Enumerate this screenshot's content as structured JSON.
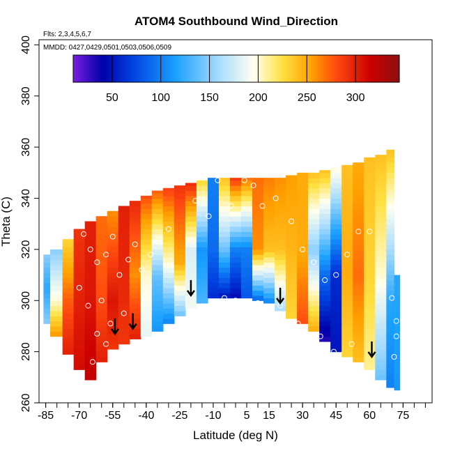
{
  "chart_data": {
    "type": "heatmap",
    "title": "ATOM4 Southbound Wind_Direction",
    "flights_note": "Flts: 2,3,4,5,6,7",
    "dates_note": "MMDD: 0427,0429,0501,0503,0506,0509",
    "xlabel": "Latitude (deg N)",
    "ylabel": "Theta (C)",
    "xlim": [
      -88,
      88
    ],
    "ylim": [
      260,
      402
    ],
    "x_ticks": [
      -85,
      -70,
      -55,
      -40,
      -25,
      -10,
      5,
      15,
      30,
      45,
      60,
      75
    ],
    "x_ticks_minor": [
      -85,
      -80,
      -75,
      -70,
      -65,
      -60,
      -55,
      -50,
      -45,
      -40,
      -35,
      -30,
      -25,
      -20,
      -15,
      -10,
      -5,
      0,
      5,
      10,
      15,
      20,
      25,
      30,
      35,
      40,
      45,
      50,
      55,
      60,
      65,
      70,
      75,
      80,
      85
    ],
    "y_ticks": [
      260,
      280,
      300,
      320,
      340,
      360,
      380,
      400
    ],
    "colorbar": {
      "range": [
        10,
        345
      ],
      "ticks": [
        50,
        100,
        150,
        200,
        250,
        300
      ],
      "colors": [
        "#7a1fe0",
        "#0000a8",
        "#0040e0",
        "#1aa0ff",
        "#a8dcff",
        "#fffff0",
        "#ffe040",
        "#ffa000",
        "#ff4a10",
        "#cc0000",
        "#8a1010"
      ],
      "color_stops": [
        10,
        40,
        70,
        115,
        160,
        195,
        225,
        255,
        280,
        315,
        345
      ]
    },
    "columns": [
      {
        "lat": -86,
        "bottom": 291,
        "top": 318,
        "dirs": [
          {
            "t": 291,
            "v": 150
          },
          {
            "t": 305,
            "v": 120
          },
          {
            "t": 318,
            "v": 150
          }
        ]
      },
      {
        "lat": -80,
        "bottom": 286,
        "top": 320,
        "dirs": [
          {
            "t": 286,
            "v": 260
          },
          {
            "t": 300,
            "v": 200
          },
          {
            "t": 320,
            "v": 150
          }
        ]
      },
      {
        "lat": -75,
        "bottom": 279,
        "top": 324,
        "dirs": [
          {
            "t": 279,
            "v": 300
          },
          {
            "t": 300,
            "v": 275
          },
          {
            "t": 324,
            "v": 230
          }
        ]
      },
      {
        "lat": -70,
        "bottom": 273,
        "top": 328,
        "dirs": [
          {
            "t": 273,
            "v": 310
          },
          {
            "t": 300,
            "v": 300
          },
          {
            "t": 328,
            "v": 290
          }
        ]
      },
      {
        "lat": -65,
        "bottom": 269,
        "top": 331,
        "dirs": [
          {
            "t": 269,
            "v": 320
          },
          {
            "t": 300,
            "v": 305
          },
          {
            "t": 331,
            "v": 300
          }
        ]
      },
      {
        "lat": -60,
        "bottom": 276,
        "top": 333,
        "dirs": [
          {
            "t": 276,
            "v": 300
          },
          {
            "t": 300,
            "v": 280
          },
          {
            "t": 333,
            "v": 270
          }
        ]
      },
      {
        "lat": -55,
        "bottom": 281,
        "top": 335,
        "dirs": [
          {
            "t": 281,
            "v": 290
          },
          {
            "t": 300,
            "v": 305
          },
          {
            "t": 335,
            "v": 260
          }
        ]
      },
      {
        "lat": -50,
        "bottom": 283,
        "top": 337,
        "dirs": [
          {
            "t": 283,
            "v": 290
          },
          {
            "t": 300,
            "v": 295
          },
          {
            "t": 337,
            "v": 300
          }
        ]
      },
      {
        "lat": -45,
        "bottom": 285,
        "top": 339,
        "dirs": [
          {
            "t": 285,
            "v": 300
          },
          {
            "t": 310,
            "v": 260
          },
          {
            "t": 339,
            "v": 295
          }
        ]
      },
      {
        "lat": -40,
        "bottom": 286,
        "top": 341,
        "dirs": [
          {
            "t": 286,
            "v": 185
          },
          {
            "t": 310,
            "v": 200
          },
          {
            "t": 341,
            "v": 280
          }
        ]
      },
      {
        "lat": -35,
        "bottom": 288,
        "top": 343,
        "dirs": [
          {
            "t": 288,
            "v": 110
          },
          {
            "t": 310,
            "v": 140
          },
          {
            "t": 343,
            "v": 275
          }
        ]
      },
      {
        "lat": -30,
        "bottom": 291,
        "top": 344,
        "dirs": [
          {
            "t": 291,
            "v": 100
          },
          {
            "t": 315,
            "v": 200
          },
          {
            "t": 344,
            "v": 285
          }
        ]
      },
      {
        "lat": -25,
        "bottom": 294,
        "top": 345,
        "dirs": [
          {
            "t": 294,
            "v": 140
          },
          {
            "t": 315,
            "v": 250
          },
          {
            "t": 345,
            "v": 290
          }
        ]
      },
      {
        "lat": -20,
        "bottom": 297,
        "top": 346,
        "dirs": [
          {
            "t": 297,
            "v": 190
          },
          {
            "t": 320,
            "v": 180
          },
          {
            "t": 346,
            "v": 295
          }
        ]
      },
      {
        "lat": -15,
        "bottom": 299,
        "top": 347,
        "dirs": [
          {
            "t": 299,
            "v": 130
          },
          {
            "t": 320,
            "v": 110
          },
          {
            "t": 347,
            "v": 230
          }
        ]
      },
      {
        "lat": -10,
        "bottom": 301,
        "top": 348,
        "dirs": [
          {
            "t": 301,
            "v": 60
          },
          {
            "t": 320,
            "v": 90
          },
          {
            "t": 348,
            "v": 100
          }
        ]
      },
      {
        "lat": -5,
        "bottom": 301,
        "top": 348,
        "dirs": [
          {
            "t": 301,
            "v": 50
          },
          {
            "t": 320,
            "v": 140
          },
          {
            "t": 348,
            "v": 240
          }
        ]
      },
      {
        "lat": 0,
        "bottom": 301,
        "top": 348,
        "dirs": [
          {
            "t": 301,
            "v": 45
          },
          {
            "t": 320,
            "v": 100
          },
          {
            "t": 348,
            "v": 290
          }
        ]
      },
      {
        "lat": 5,
        "bottom": 301,
        "top": 348,
        "dirs": [
          {
            "t": 301,
            "v": 80
          },
          {
            "t": 320,
            "v": 100
          },
          {
            "t": 348,
            "v": 270
          }
        ]
      },
      {
        "lat": 10,
        "bottom": 300,
        "top": 348,
        "dirs": [
          {
            "t": 300,
            "v": 85
          },
          {
            "t": 320,
            "v": 260
          },
          {
            "t": 348,
            "v": 270
          }
        ]
      },
      {
        "lat": 15,
        "bottom": 299,
        "top": 348,
        "dirs": [
          {
            "t": 299,
            "v": 100
          },
          {
            "t": 320,
            "v": 240
          },
          {
            "t": 348,
            "v": 265
          }
        ]
      },
      {
        "lat": 20,
        "bottom": 296,
        "top": 348,
        "dirs": [
          {
            "t": 296,
            "v": 160
          },
          {
            "t": 320,
            "v": 240
          },
          {
            "t": 348,
            "v": 260
          }
        ]
      },
      {
        "lat": 25,
        "bottom": 293,
        "top": 349,
        "dirs": [
          {
            "t": 293,
            "v": 230
          },
          {
            "t": 320,
            "v": 245
          },
          {
            "t": 349,
            "v": 255
          }
        ]
      },
      {
        "lat": 30,
        "bottom": 291,
        "top": 350,
        "dirs": [
          {
            "t": 291,
            "v": 280
          },
          {
            "t": 320,
            "v": 250
          },
          {
            "t": 350,
            "v": 250
          }
        ]
      },
      {
        "lat": 35,
        "bottom": 288,
        "top": 350,
        "dirs": [
          {
            "t": 288,
            "v": 250
          },
          {
            "t": 320,
            "v": 150
          },
          {
            "t": 350,
            "v": 240
          }
        ]
      },
      {
        "lat": 40,
        "bottom": 284,
        "top": 351,
        "dirs": [
          {
            "t": 284,
            "v": 30
          },
          {
            "t": 310,
            "v": 90
          },
          {
            "t": 351,
            "v": 240
          }
        ]
      },
      {
        "lat": 45,
        "bottom": 280,
        "top": 352,
        "dirs": [
          {
            "t": 280,
            "v": 50
          },
          {
            "t": 310,
            "v": 60
          },
          {
            "t": 352,
            "v": 200
          }
        ]
      },
      {
        "lat": 50,
        "bottom": 278,
        "top": 353,
        "dirs": [
          {
            "t": 278,
            "v": 230
          },
          {
            "t": 310,
            "v": 250
          },
          {
            "t": 353,
            "v": 240
          }
        ]
      },
      {
        "lat": 55,
        "bottom": 276,
        "top": 354,
        "dirs": [
          {
            "t": 276,
            "v": 240
          },
          {
            "t": 310,
            "v": 270
          },
          {
            "t": 354,
            "v": 250
          }
        ]
      },
      {
        "lat": 60,
        "bottom": 273,
        "top": 356,
        "dirs": [
          {
            "t": 273,
            "v": 210
          },
          {
            "t": 310,
            "v": 230
          },
          {
            "t": 356,
            "v": 240
          }
        ]
      },
      {
        "lat": 65,
        "bottom": 269,
        "top": 357,
        "dirs": [
          {
            "t": 269,
            "v": 140
          },
          {
            "t": 310,
            "v": 200
          },
          {
            "t": 357,
            "v": 240
          }
        ]
      },
      {
        "lat": 70,
        "bottom": 266,
        "top": 359,
        "dirs": [
          {
            "t": 266,
            "v": 100
          },
          {
            "t": 300,
            "v": 120
          },
          {
            "t": 359,
            "v": 240
          }
        ]
      },
      {
        "lat": 72,
        "bottom": 265,
        "top": 310,
        "dirs": [
          {
            "t": 265,
            "v": 110
          },
          {
            "t": 310,
            "v": 120
          }
        ]
      }
    ],
    "observation_points": [
      {
        "lat": -68,
        "t": 326
      },
      {
        "lat": -65,
        "t": 320
      },
      {
        "lat": -62,
        "t": 315
      },
      {
        "lat": -58,
        "t": 318
      },
      {
        "lat": -55,
        "t": 325
      },
      {
        "lat": -52,
        "t": 310
      },
      {
        "lat": -48,
        "t": 316
      },
      {
        "lat": -60,
        "t": 300
      },
      {
        "lat": -66,
        "t": 298
      },
      {
        "lat": -70,
        "t": 305
      },
      {
        "lat": -45,
        "t": 322
      },
      {
        "lat": -42,
        "t": 312
      },
      {
        "lat": -38,
        "t": 318
      },
      {
        "lat": -34,
        "t": 324
      },
      {
        "lat": -30,
        "t": 328
      },
      {
        "lat": -50,
        "t": 295
      },
      {
        "lat": -56,
        "t": 291
      },
      {
        "lat": -62,
        "t": 287
      },
      {
        "lat": -64,
        "t": 276
      },
      {
        "lat": -58,
        "t": 283
      },
      {
        "lat": -18,
        "t": 339
      },
      {
        "lat": -12,
        "t": 333
      },
      {
        "lat": -8,
        "t": 347
      },
      {
        "lat": -2,
        "t": 337
      },
      {
        "lat": 4,
        "t": 347
      },
      {
        "lat": 8,
        "t": 345
      },
      {
        "lat": 12,
        "t": 337
      },
      {
        "lat": 18,
        "t": 340
      },
      {
        "lat": 25,
        "t": 331
      },
      {
        "lat": 30,
        "t": 320
      },
      {
        "lat": 35,
        "t": 315
      },
      {
        "lat": 40,
        "t": 308
      },
      {
        "lat": 45,
        "t": 310
      },
      {
        "lat": 50,
        "t": 318
      },
      {
        "lat": 55,
        "t": 327
      },
      {
        "lat": 60,
        "t": 327
      },
      {
        "lat": -5,
        "t": 301
      },
      {
        "lat": 0,
        "t": 300
      },
      {
        "lat": 10,
        "t": 299
      },
      {
        "lat": 20,
        "t": 298
      },
      {
        "lat": 28,
        "t": 291
      },
      {
        "lat": 38,
        "t": 286
      },
      {
        "lat": 44,
        "t": 280
      },
      {
        "lat": 52,
        "t": 283
      },
      {
        "lat": 70,
        "t": 301
      },
      {
        "lat": 72,
        "t": 286
      },
      {
        "lat": 71,
        "t": 278
      },
      {
        "lat": 72,
        "t": 292
      }
    ],
    "arrows": [
      {
        "lat": -54,
        "t": 287
      },
      {
        "lat": -46,
        "t": 289
      },
      {
        "lat": -20,
        "t": 302
      },
      {
        "lat": 20,
        "t": 299
      },
      {
        "lat": 61,
        "t": 278
      }
    ]
  }
}
